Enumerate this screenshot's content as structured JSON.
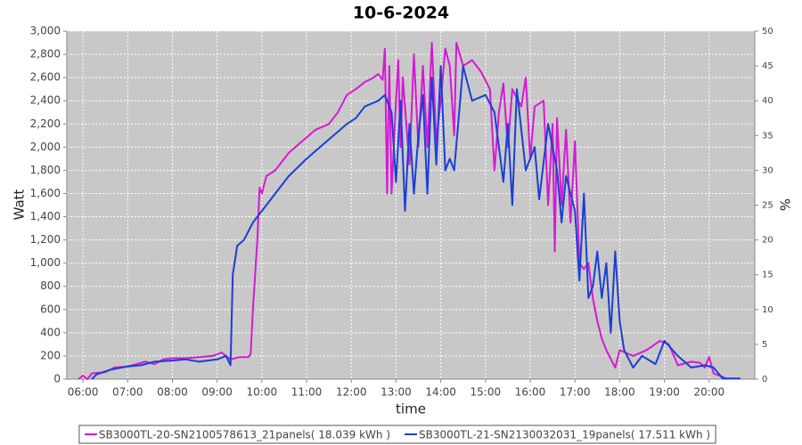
{
  "chart_data": {
    "type": "line",
    "title": "10-6-2024",
    "x_label": "time",
    "y_label": "Watt",
    "y2_label": "%",
    "xlim": [
      5.64,
      21.02
    ],
    "xticks": [
      {
        "value": 6,
        "label": "06:00"
      },
      {
        "value": 7,
        "label": "07:00"
      },
      {
        "value": 8,
        "label": "08:00"
      },
      {
        "value": 9,
        "label": "09:00"
      },
      {
        "value": 10,
        "label": "10:00"
      },
      {
        "value": 11,
        "label": "11:00"
      },
      {
        "value": 12,
        "label": "12:00"
      },
      {
        "value": 13,
        "label": "13:00"
      },
      {
        "value": 14,
        "label": "14:00"
      },
      {
        "value": 15,
        "label": "15:00"
      },
      {
        "value": 16,
        "label": "16:00"
      },
      {
        "value": 17,
        "label": "17:00"
      },
      {
        "value": 18,
        "label": "18:00"
      },
      {
        "value": 19,
        "label": "19:00"
      },
      {
        "value": 20,
        "label": "20:00"
      }
    ],
    "ylim": [
      0,
      3000
    ],
    "yticks": [
      0,
      200,
      400,
      600,
      800,
      {
        "value": 1000,
        "label": "1,000"
      },
      {
        "value": 1200,
        "label": "1,200"
      },
      {
        "value": 1400,
        "label": "1,400"
      },
      {
        "value": 1600,
        "label": "1,600"
      },
      {
        "value": 1800,
        "label": "1,800"
      },
      {
        "value": 2000,
        "label": "2,000"
      },
      {
        "value": 2200,
        "label": "2,200"
      },
      {
        "value": 2400,
        "label": "2,400"
      },
      {
        "value": 2600,
        "label": "2,600"
      },
      {
        "value": 2800,
        "label": "2,800"
      },
      {
        "value": 3000,
        "label": "3,000"
      }
    ],
    "y2lim": [
      0,
      50
    ],
    "y2ticks": [
      0,
      5,
      10,
      15,
      20,
      25,
      30,
      35,
      40,
      45,
      50
    ],
    "grid": true,
    "legend": "bottom",
    "series": [
      {
        "name": "SB3000TL-20-SN2100578613_21panels( 18.039 kWh )",
        "color": "#d41ad4",
        "x": [
          5.9,
          6.0,
          6.1,
          6.2,
          6.5,
          6.7,
          7.0,
          7.2,
          7.4,
          7.6,
          7.8,
          8.0,
          8.3,
          8.6,
          8.9,
          9.1,
          9.3,
          9.5,
          9.7,
          9.75,
          9.8,
          9.9,
          9.95,
          10.0,
          10.1,
          10.3,
          10.6,
          10.9,
          11.2,
          11.5,
          11.7,
          11.9,
          12.1,
          12.3,
          12.5,
          12.6,
          12.7,
          12.75,
          12.8,
          12.85,
          12.9,
          13.0,
          13.05,
          13.1,
          13.15,
          13.3,
          13.4,
          13.5,
          13.6,
          13.7,
          13.8,
          13.9,
          14.0,
          14.1,
          14.2,
          14.3,
          14.35,
          14.5,
          14.7,
          14.9,
          15.1,
          15.2,
          15.3,
          15.4,
          15.5,
          15.6,
          15.8,
          15.9,
          16.0,
          16.1,
          16.3,
          16.4,
          16.5,
          16.55,
          16.6,
          16.7,
          16.8,
          16.9,
          17.0,
          17.1,
          17.2,
          17.3,
          17.4,
          17.5,
          17.6,
          17.7,
          17.9,
          18.0,
          18.3,
          18.6,
          18.9,
          19.1,
          19.3,
          19.6,
          19.8,
          19.9,
          20.0,
          20.1,
          20.3,
          20.4
        ],
        "values": [
          0,
          30,
          0,
          50,
          60,
          100,
          110,
          130,
          150,
          130,
          170,
          180,
          180,
          190,
          200,
          230,
          170,
          190,
          190,
          220,
          600,
          1200,
          1650,
          1600,
          1750,
          1800,
          1950,
          2050,
          2150,
          2200,
          2300,
          2450,
          2500,
          2560,
          2600,
          2630,
          2580,
          2850,
          1600,
          2700,
          1600,
          2400,
          2750,
          2000,
          2600,
          1850,
          2800,
          2000,
          2700,
          2000,
          2900,
          2050,
          2400,
          2850,
          2700,
          2100,
          2900,
          2700,
          2750,
          2650,
          2500,
          1800,
          2300,
          2550,
          2000,
          2500,
          2350,
          2600,
          1900,
          2350,
          2400,
          1500,
          2200,
          1100,
          2250,
          1500,
          2150,
          1350,
          2050,
          1000,
          950,
          1000,
          700,
          500,
          350,
          250,
          100,
          250,
          200,
          250,
          330,
          300,
          120,
          150,
          140,
          100,
          190,
          50,
          20,
          0
        ]
      },
      {
        "name": "SB3000TL-21-SN2130032031_19panels( 17.511 kWh )",
        "color": "#1a3fd4",
        "x": [
          6.2,
          6.3,
          6.6,
          7.0,
          7.3,
          7.6,
          8.0,
          8.3,
          8.6,
          9.0,
          9.2,
          9.3,
          9.35,
          9.45,
          9.6,
          9.8,
          10.0,
          10.3,
          10.6,
          11.0,
          11.3,
          11.6,
          11.9,
          12.1,
          12.3,
          12.6,
          12.75,
          12.9,
          13.0,
          13.1,
          13.2,
          13.3,
          13.4,
          13.5,
          13.6,
          13.7,
          13.8,
          13.9,
          14.0,
          14.1,
          14.2,
          14.3,
          14.5,
          14.7,
          15.0,
          15.2,
          15.4,
          15.5,
          15.6,
          15.7,
          15.9,
          16.1,
          16.2,
          16.4,
          16.6,
          16.7,
          16.8,
          17.0,
          17.1,
          17.2,
          17.3,
          17.4,
          17.5,
          17.6,
          17.7,
          17.8,
          17.9,
          18.0,
          18.1,
          18.3,
          18.5,
          18.8,
          19.0,
          19.3,
          19.6,
          19.9,
          20.1,
          20.3,
          20.7
        ],
        "values": [
          0,
          40,
          80,
          110,
          120,
          150,
          160,
          170,
          150,
          170,
          200,
          120,
          900,
          1150,
          1200,
          1350,
          1450,
          1600,
          1750,
          1900,
          2000,
          2100,
          2200,
          2250,
          2350,
          2400,
          2450,
          2300,
          1700,
          2400,
          1450,
          2200,
          1600,
          2100,
          2450,
          1600,
          2600,
          1850,
          2700,
          1800,
          1900,
          1800,
          2700,
          2400,
          2450,
          2300,
          1700,
          2200,
          1500,
          2500,
          1800,
          2000,
          1550,
          2200,
          1800,
          1350,
          1750,
          1450,
          850,
          1600,
          700,
          800,
          1100,
          700,
          1000,
          400,
          1100,
          500,
          250,
          100,
          200,
          130,
          330,
          200,
          100,
          120,
          100,
          5,
          5
        ]
      }
    ]
  }
}
